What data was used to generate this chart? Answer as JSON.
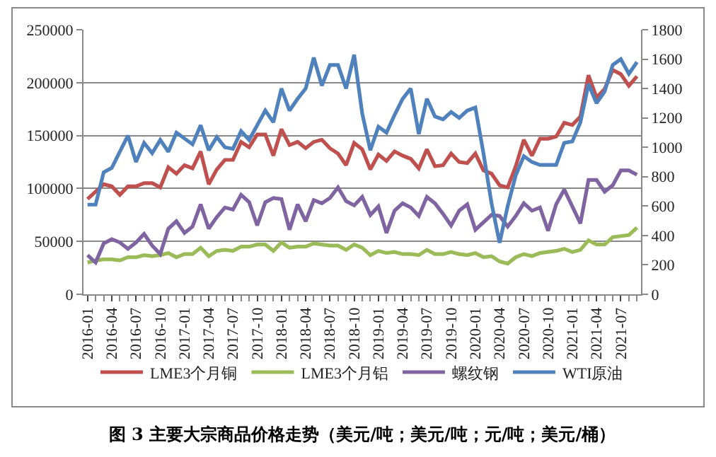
{
  "chart_data": {
    "type": "line",
    "title": "图 3 主要大宗商品价格走势（美元/吨；美元/吨；元/吨；美元/桶）",
    "categories": [
      "2016-01",
      null,
      null,
      "2016-04",
      null,
      null,
      "2016-07",
      null,
      null,
      "2016-10",
      null,
      null,
      "2017-01",
      null,
      null,
      "2017-04",
      null,
      null,
      "2017-07",
      null,
      null,
      "2017-10",
      null,
      null,
      "2018-01",
      null,
      null,
      "2018-04",
      null,
      null,
      "2018-07",
      null,
      null,
      "2018-10",
      null,
      null,
      "2019-01",
      null,
      null,
      "2019-04",
      null,
      null,
      "2019-07",
      null,
      null,
      "2019-10",
      null,
      null,
      "2020-01",
      null,
      null,
      "2020-04",
      null,
      null,
      "2020-07",
      null,
      null,
      "2020-10",
      null,
      null,
      "2021-01",
      null,
      null,
      "2021-04",
      null,
      null,
      "2021-07",
      null,
      null
    ],
    "series": [
      {
        "name": "LME3个月铜",
        "color": "#c0504d",
        "values": [
          90000,
          97000,
          104000,
          102000,
          94000,
          102000,
          102000,
          105000,
          105000,
          101000,
          120000,
          114000,
          122000,
          119000,
          135000,
          104000,
          118000,
          127000,
          127000,
          144000,
          139000,
          151000,
          151000,
          131000,
          156000,
          141000,
          144000,
          138000,
          144000,
          146000,
          138000,
          133000,
          122000,
          143000,
          137000,
          118000,
          132000,
          126000,
          135000,
          131000,
          128000,
          119000,
          137000,
          121000,
          122000,
          133000,
          125000,
          124000,
          133000,
          117000,
          114000,
          103000,
          101000,
          121000,
          146000,
          131000,
          147000,
          147000,
          149000,
          162000,
          160000,
          168000,
          207000,
          186000,
          194000,
          212000,
          208000,
          197000,
          206000
        ]
      },
      {
        "name": "LME3个月铝",
        "color": "#9bbb59",
        "values": [
          30000,
          32000,
          33000,
          33000,
          32000,
          35000,
          35000,
          37000,
          36000,
          37000,
          39000,
          35000,
          38000,
          38000,
          44000,
          36000,
          41000,
          42000,
          41000,
          45000,
          45000,
          47000,
          47000,
          41000,
          49000,
          44000,
          45000,
          45000,
          48000,
          47000,
          46000,
          46000,
          42000,
          47000,
          44000,
          37000,
          41000,
          39000,
          40000,
          38000,
          38000,
          37000,
          42000,
          38000,
          38000,
          40000,
          38000,
          37000,
          39000,
          35000,
          36000,
          31000,
          29000,
          35000,
          38000,
          36000,
          39000,
          40000,
          41000,
          43000,
          40000,
          42000,
          51000,
          47000,
          47000,
          54000,
          55000,
          56000,
          63000
        ]
      },
      {
        "name": "螺纹钢",
        "color": "#8064a2",
        "values": [
          37000,
          30000,
          48000,
          52000,
          49000,
          43000,
          49000,
          57000,
          46000,
          38000,
          62000,
          69000,
          58000,
          64000,
          85000,
          62000,
          73000,
          82000,
          80000,
          94000,
          87000,
          65000,
          87000,
          91000,
          90000,
          61000,
          85000,
          69000,
          89000,
          86000,
          91000,
          101000,
          88000,
          84000,
          92000,
          75000,
          83000,
          58000,
          79000,
          86000,
          82000,
          74000,
          92000,
          86000,
          76000,
          65000,
          79000,
          85000,
          61000,
          68000,
          75000,
          74000,
          64000,
          74000,
          86000,
          79000,
          82000,
          60000,
          85000,
          99000,
          83000,
          67000,
          108000,
          108000,
          97000,
          103000,
          117000,
          117000,
          113000
        ]
      },
      {
        "name": "WTI原油",
        "color": "#4f81bd",
        "axis": "y2",
        "values": [
          610,
          610,
          830,
          860,
          970,
          1080,
          900,
          1030,
          960,
          1050,
          970,
          1100,
          1060,
          1020,
          1150,
          980,
          1070,
          1000,
          990,
          1110,
          1050,
          1150,
          1250,
          1170,
          1400,
          1250,
          1330,
          1400,
          1610,
          1420,
          1560,
          1560,
          1400,
          1630,
          1230,
          980,
          1140,
          1100,
          1220,
          1330,
          1400,
          1090,
          1330,
          1210,
          1190,
          1240,
          1200,
          1250,
          1270,
          960,
          620,
          350,
          600,
          810,
          940,
          900,
          880,
          880,
          880,
          1030,
          1040,
          1170,
          1430,
          1300,
          1380,
          1560,
          1600,
          1500,
          1580
        ]
      }
    ],
    "ylim": [
      0,
      250000
    ],
    "yticks": [
      0,
      50000,
      100000,
      150000,
      200000,
      250000
    ],
    "y2lim": [
      0,
      1800
    ],
    "y2ticks": [
      0,
      200,
      400,
      600,
      800,
      1000,
      1200,
      1400,
      1600,
      1800
    ],
    "grid": "y",
    "legend": "bottom",
    "marker": "none",
    "line_style": "solid"
  }
}
